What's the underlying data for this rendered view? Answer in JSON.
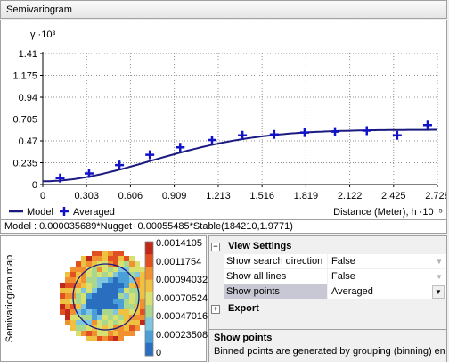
{
  "panel_title": "Semivariogram",
  "chart_data": {
    "type": "scatter",
    "y_axis_label": "γ ·10³",
    "x_axis_label": "Distance (Meter), h ·10⁻⁵",
    "x_ticks": [
      "0",
      "0.303",
      "0.606",
      "0.909",
      "1.213",
      "1.516",
      "1.819",
      "2.122",
      "2.425",
      "2.728"
    ],
    "x_tick_values": [
      0,
      0.303,
      0.606,
      0.909,
      1.213,
      1.516,
      1.819,
      2.122,
      2.425,
      2.728
    ],
    "y_ticks": [
      "0",
      "0.235",
      "0.47",
      "0.705",
      "0.94",
      "1.175",
      "1.41"
    ],
    "y_tick_values": [
      0,
      0.235,
      0.47,
      0.705,
      0.94,
      1.175,
      1.41
    ],
    "xlim": [
      0,
      2.728
    ],
    "ylim": [
      0,
      1.41
    ],
    "grid": true,
    "legend_placement": "bottom-left",
    "series": [
      {
        "name": "Averaged",
        "kind": "points",
        "color": "#1212c8",
        "x": [
          0.12,
          0.32,
          0.53,
          0.74,
          0.95,
          1.17,
          1.38,
          1.6,
          1.81,
          2.02,
          2.24,
          2.45,
          2.66
        ],
        "y": [
          0.07,
          0.12,
          0.21,
          0.32,
          0.4,
          0.48,
          0.53,
          0.54,
          0.56,
          0.57,
          0.58,
          0.53,
          0.64
        ]
      },
      {
        "name": "Model",
        "kind": "line",
        "color": "#1a1a80",
        "nugget": 0.035689,
        "partial_sill": 0.55485,
        "range": 1.8421,
        "shape": 1.9771
      }
    ]
  },
  "model_text": "Model : 0.000035689*Nugget+0.00055485*Stable(184210,1.9771)",
  "map": {
    "side_label": "Semivariogram map",
    "legend_values": [
      "0.0014105",
      "0.0011754",
      "0.00094032",
      "0.00070524",
      "0.00047016",
      "0.00023508",
      "0"
    ]
  },
  "properties": {
    "view_settings_label": "View Settings",
    "export_label": "Export",
    "rows": [
      {
        "name": "Show search direction",
        "value": "False"
      },
      {
        "name": "Show all lines",
        "value": "False"
      },
      {
        "name": "Show points",
        "value": "Averaged"
      }
    ],
    "description_title": "Show points",
    "description_text": "Binned points are generated by grouping (binning) em..."
  }
}
